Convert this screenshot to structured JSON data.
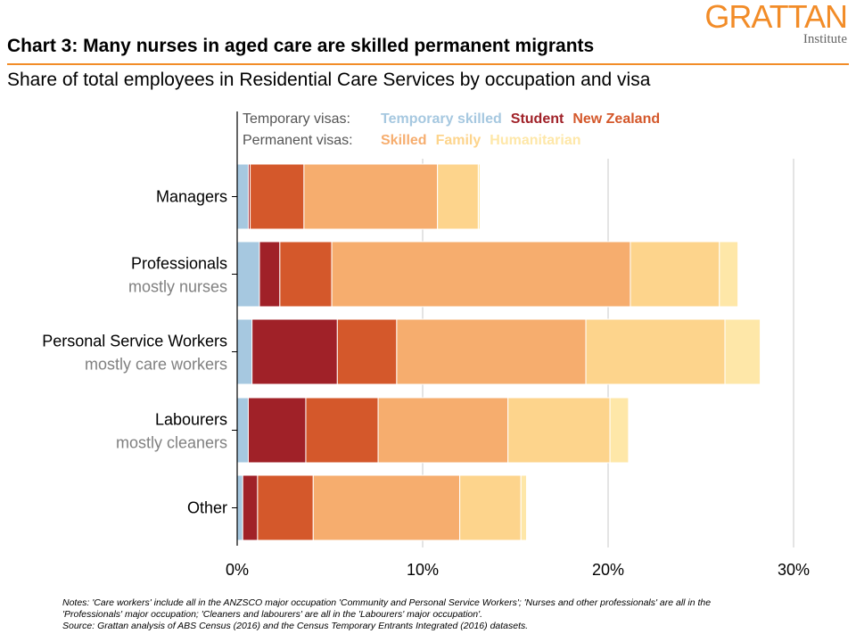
{
  "header": {
    "title": "Chart 3: Many nurses in aged care are skilled permanent migrants",
    "subtitle": "Share of total employees in Residential Care Services by occupation and visa",
    "logo_main": "GRATTAN",
    "logo_sub": "Institute"
  },
  "notes": {
    "line1": "Notes: 'Care workers' include all in the ANZSCO major occupation 'Community and Personal Service Workers'; 'Nurses and other professionals' are all in the",
    "line2": "'Professionals' major occupation; 'Cleaners and labourers' are all in the 'Labourers' major occupation'.",
    "line3": "Source: Grattan analysis of ABS Census (2016) and the Census Temporary Entrants Integrated (2016) datasets."
  },
  "chart_data": {
    "type": "bar",
    "orientation": "horizontal",
    "stacked": true,
    "title": "Chart 3: Many nurses in aged care are skilled permanent migrants",
    "xlabel": "",
    "ylabel": "",
    "xlim": [
      0,
      30
    ],
    "xticks": [
      0,
      10,
      20,
      30
    ],
    "xtick_labels": [
      "0%",
      "10%",
      "20%",
      "30%"
    ],
    "grid": true,
    "legend": {
      "placement": "top",
      "temporary_label": "Temporary visas:",
      "permanent_label": "Permanent visas:"
    },
    "categories": [
      {
        "label": "Managers",
        "sublabel": ""
      },
      {
        "label": "Professionals",
        "sublabel": "mostly nurses"
      },
      {
        "label": "Personal Service Workers",
        "sublabel": "mostly care workers"
      },
      {
        "label": "Labourers",
        "sublabel": "mostly cleaners"
      },
      {
        "label": "Other",
        "sublabel": ""
      }
    ],
    "series": [
      {
        "name": "Temporary skilled",
        "group": "temporary",
        "color": "#a6c8e0",
        "values": [
          0.6,
          1.2,
          0.8,
          0.6,
          0.3
        ]
      },
      {
        "name": "Student",
        "group": "temporary",
        "color": "#a02128",
        "values": [
          0.1,
          1.1,
          4.6,
          3.1,
          0.8
        ]
      },
      {
        "name": "New Zealand",
        "group": "temporary",
        "color": "#d4582b",
        "values": [
          2.9,
          2.8,
          3.2,
          3.9,
          3.0
        ]
      },
      {
        "name": "Skilled",
        "group": "permanent",
        "color": "#f6ad6e",
        "values": [
          7.2,
          16.1,
          10.2,
          7.0,
          7.9
        ]
      },
      {
        "name": "Family",
        "group": "permanent",
        "color": "#fdd48c",
        "values": [
          2.2,
          4.8,
          7.5,
          5.5,
          3.3
        ]
      },
      {
        "name": "Humanitarian",
        "group": "permanent",
        "color": "#fee7a8",
        "values": [
          0.1,
          1.0,
          1.9,
          1.0,
          0.3
        ]
      }
    ]
  }
}
